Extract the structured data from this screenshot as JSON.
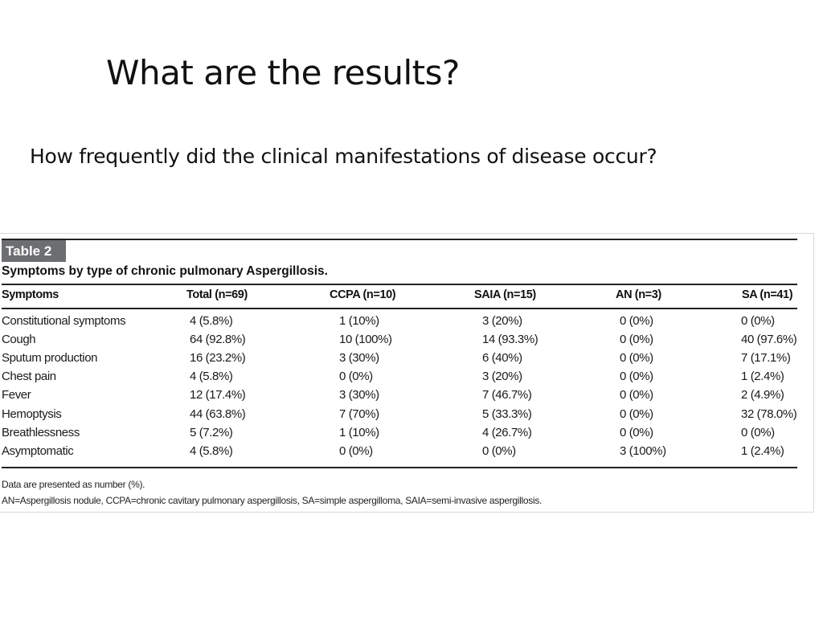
{
  "slide": {
    "title": "What are the results?",
    "subtitle": "How frequently did the clinical manifestations of disease occur?"
  },
  "table": {
    "label": "Table 2",
    "caption": "Symptoms by type of chronic pulmonary Aspergillosis.",
    "headers": [
      "Symptoms",
      "Total (n=69)",
      "CCPA (n=10)",
      "SAIA (n=15)",
      "AN (n=3)",
      "SA (n=41)"
    ],
    "rows": [
      [
        "Constitutional symptoms",
        "4 (5.8%)",
        "1 (10%)",
        "3 (20%)",
        "0 (0%)",
        "0 (0%)"
      ],
      [
        "Cough",
        "64 (92.8%)",
        "10 (100%)",
        "14 (93.3%)",
        "0 (0%)",
        "40 (97.6%)"
      ],
      [
        "Sputum production",
        "16 (23.2%)",
        "3 (30%)",
        "6 (40%)",
        "0 (0%)",
        "7 (17.1%)"
      ],
      [
        "Chest pain",
        "4 (5.8%)",
        "0 (0%)",
        "3 (20%)",
        "0 (0%)",
        "1 (2.4%)"
      ],
      [
        "Fever",
        "12 (17.4%)",
        "3 (30%)",
        "7 (46.7%)",
        "0 (0%)",
        "2 (4.9%)"
      ],
      [
        "Hemoptysis",
        "44 (63.8%)",
        "7 (70%)",
        "5 (33.3%)",
        "0 (0%)",
        "32 (78.0%)"
      ],
      [
        "Breathlessness",
        "5 (7.2%)",
        "1 (10%)",
        "4 (26.7%)",
        "0 (0%)",
        "0 (0%)"
      ],
      [
        "Asymptomatic",
        "4 (5.8%)",
        "0 (0%)",
        "0 (0%)",
        "3 (100%)",
        "1 (2.4%)"
      ]
    ],
    "footnotes": [
      "Data are presented as number (%).",
      "AN=Aspergillosis nodule, CCPA=chronic cavitary pulmonary aspergillosis, SA=simple aspergilloma, SAIA=semi-invasive aspergillosis."
    ]
  }
}
